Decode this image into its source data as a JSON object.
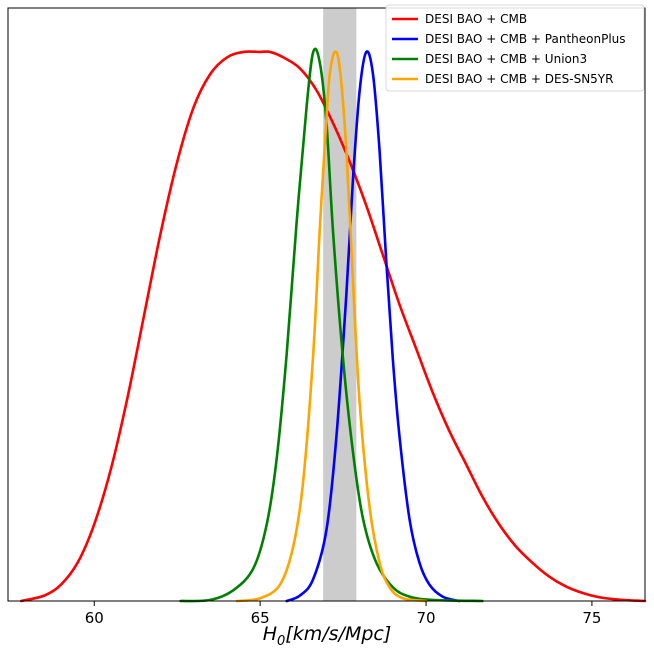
{
  "chart_data": {
    "type": "line",
    "title": "",
    "xlabel_main": "H",
    "xlabel_sub": "0",
    "xlabel_units": "[km/s/Mpc]",
    "ylabel": "",
    "xlim": [
      57.4,
      76.6
    ],
    "ylim": [
      0,
      1.08
    ],
    "xticks": [
      60,
      65,
      70,
      75
    ],
    "xtick_labels": [
      "60",
      "65",
      "70",
      "75"
    ],
    "grid": false,
    "legend_position": "top-right",
    "band": {
      "x0": 66.9,
      "x1": 67.9,
      "color": "#cccccc"
    },
    "series": [
      {
        "name": "DESI BAO + CMB",
        "color": "#ff0000",
        "x": [
          57.8,
          58.5,
          59.0,
          59.5,
          60.0,
          60.5,
          61.0,
          61.5,
          62.0,
          62.5,
          63.0,
          63.5,
          64.0,
          64.5,
          65.0,
          65.3,
          65.7,
          66.2,
          66.7,
          67.2,
          67.7,
          68.2,
          68.7,
          69.2,
          69.7,
          70.2,
          70.7,
          71.2,
          71.7,
          72.2,
          72.7,
          73.2,
          73.7,
          74.2,
          74.7,
          75.2,
          75.7,
          76.2,
          76.6
        ],
        "y": [
          0.0,
          0.01,
          0.03,
          0.07,
          0.14,
          0.24,
          0.37,
          0.52,
          0.67,
          0.8,
          0.9,
          0.96,
          0.99,
          1.0,
          1.0,
          1.0,
          0.99,
          0.97,
          0.93,
          0.87,
          0.8,
          0.72,
          0.63,
          0.54,
          0.46,
          0.38,
          0.31,
          0.25,
          0.19,
          0.14,
          0.1,
          0.07,
          0.045,
          0.027,
          0.015,
          0.007,
          0.003,
          0.001,
          0.0
        ]
      },
      {
        "name": "DESI BAO + CMB + PantheonPlus",
        "color": "#0000ff",
        "x": [
          65.8,
          66.2,
          66.6,
          67.0,
          67.3,
          67.6,
          67.8,
          68.0,
          68.2,
          68.4,
          68.6,
          68.8,
          69.0,
          69.2,
          69.5,
          69.8,
          70.1,
          70.5,
          71.0
        ],
        "y": [
          0.0,
          0.01,
          0.04,
          0.13,
          0.3,
          0.56,
          0.77,
          0.93,
          1.0,
          0.96,
          0.82,
          0.62,
          0.44,
          0.3,
          0.15,
          0.07,
          0.03,
          0.008,
          0.0
        ]
      },
      {
        "name": "DESI BAO + CMB + Union3",
        "color": "#008000",
        "x": [
          62.6,
          63.5,
          64.2,
          64.8,
          65.2,
          65.5,
          65.8,
          66.1,
          66.4,
          66.6,
          66.8,
          67.0,
          67.2,
          67.5,
          67.8,
          68.1,
          68.5,
          69.0,
          69.5,
          70.2,
          71.7
        ],
        "y": [
          0.0,
          0.002,
          0.02,
          0.06,
          0.14,
          0.26,
          0.45,
          0.69,
          0.9,
          1.0,
          0.98,
          0.87,
          0.67,
          0.44,
          0.27,
          0.15,
          0.07,
          0.025,
          0.008,
          0.002,
          0.0
        ]
      },
      {
        "name": "DESI BAO + CMB + DES-SN5YR",
        "color": "#ffa500",
        "x": [
          64.3,
          65.0,
          65.6,
          66.0,
          66.3,
          66.6,
          66.8,
          67.0,
          67.1,
          67.25,
          67.4,
          67.6,
          67.8,
          68.0,
          68.3,
          68.6,
          68.9,
          69.3,
          70.0
        ],
        "y": [
          0.0,
          0.005,
          0.03,
          0.1,
          0.22,
          0.45,
          0.68,
          0.88,
          0.96,
          1.0,
          0.97,
          0.82,
          0.58,
          0.36,
          0.17,
          0.07,
          0.025,
          0.005,
          0.0
        ]
      }
    ]
  }
}
